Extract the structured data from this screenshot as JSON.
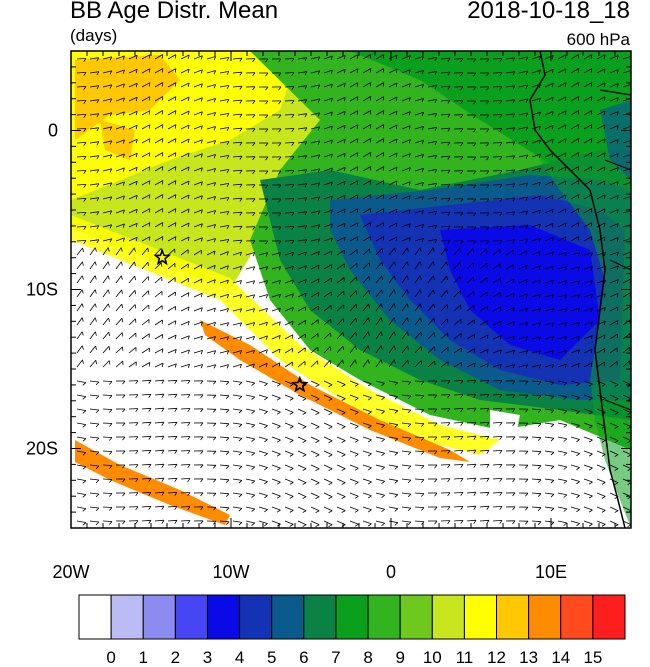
{
  "header": {
    "title": "BB Age Distr. Mean",
    "units": "(days)",
    "datetime": "2018-10-18_18",
    "level": "600 hPa"
  },
  "map": {
    "lon_range": [
      -20,
      15
    ],
    "lat_range": [
      -25,
      5
    ],
    "lon_ticks": [
      {
        "value": -20,
        "label": "20W"
      },
      {
        "value": -10,
        "label": "10W"
      },
      {
        "value": 0,
        "label": "0"
      },
      {
        "value": 10,
        "label": "10E"
      }
    ],
    "lat_ticks": [
      {
        "value": 0,
        "label": "0"
      },
      {
        "value": -10,
        "label": "10S"
      },
      {
        "value": -20,
        "label": "20S"
      }
    ],
    "markers": [
      {
        "name": "star-marker",
        "lon": -14.3,
        "lat": -8.0
      },
      {
        "name": "star-marker",
        "lon": -5.7,
        "lat": -16.0
      }
    ],
    "vector_field": "wind-barbs"
  },
  "colorbar": {
    "labels": [
      "0",
      "1",
      "2",
      "3",
      "4",
      "5",
      "6",
      "7",
      "8",
      "9",
      "10",
      "11",
      "12",
      "13",
      "14",
      "15"
    ],
    "colors": [
      "#ffffff",
      "#bcbcf5",
      "#8c8cf0",
      "#4646f5",
      "#0a0ae6",
      "#1432b4",
      "#0a5a8c",
      "#0a8246",
      "#0aa01e",
      "#32b41e",
      "#6ec81e",
      "#c8e61e",
      "#ffff00",
      "#ffc800",
      "#ff8c00",
      "#ff4b1e",
      "#ff1e1e"
    ]
  }
}
